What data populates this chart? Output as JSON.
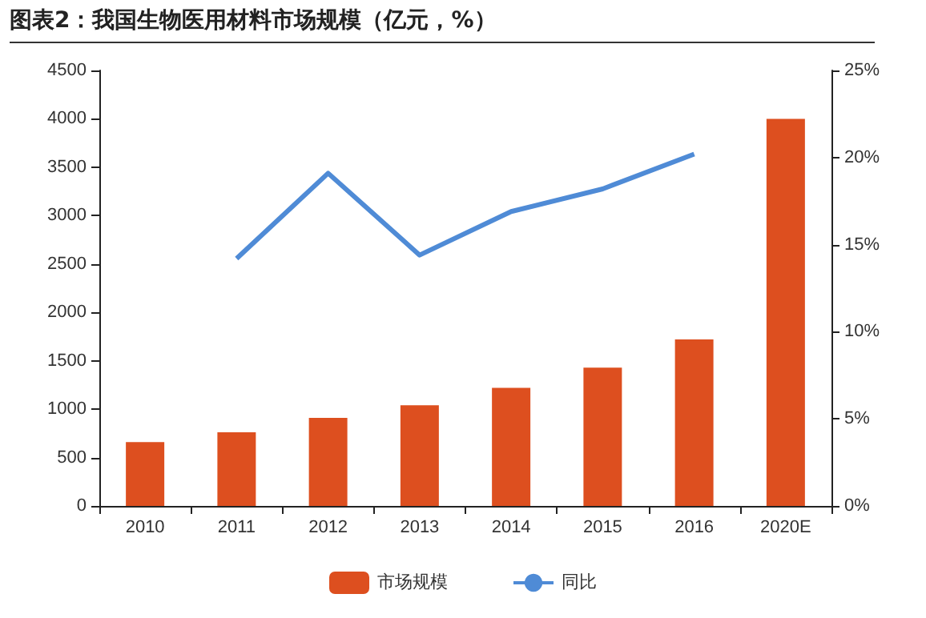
{
  "chart_data": {
    "type": "bar",
    "title": "图表2：我国生物医用材料市场规模（亿元，%）",
    "categories": [
      "2010",
      "2011",
      "2012",
      "2013",
      "2014",
      "2015",
      "2016",
      "2020E"
    ],
    "series": [
      {
        "name": "市场规模",
        "color": "#dd4f1f",
        "values": [
          660,
          760,
          910,
          1040,
          1220,
          1430,
          1720,
          4000
        ]
      },
      {
        "name": "同比",
        "type": "line",
        "axis": "y2",
        "color": "#4f8bd6",
        "values": [
          null,
          14.2,
          19.1,
          14.4,
          16.9,
          18.2,
          20.2,
          null
        ]
      }
    ],
    "ylim": [
      0,
      4500
    ],
    "yticks": [
      0,
      500,
      1000,
      1500,
      2000,
      2500,
      3000,
      3500,
      4000,
      4500
    ],
    "y2lim": [
      0,
      25
    ],
    "y2ticks": [
      {
        "value": 0,
        "label": "0%"
      },
      {
        "value": 5,
        "label": "5%"
      },
      {
        "value": 10,
        "label": "10%"
      },
      {
        "value": 15,
        "label": "15%"
      },
      {
        "value": 20,
        "label": "20%"
      },
      {
        "value": 25,
        "label": "25%"
      }
    ],
    "legend": "bottom",
    "grid": false,
    "marker": "none",
    "line_style": "solid"
  }
}
